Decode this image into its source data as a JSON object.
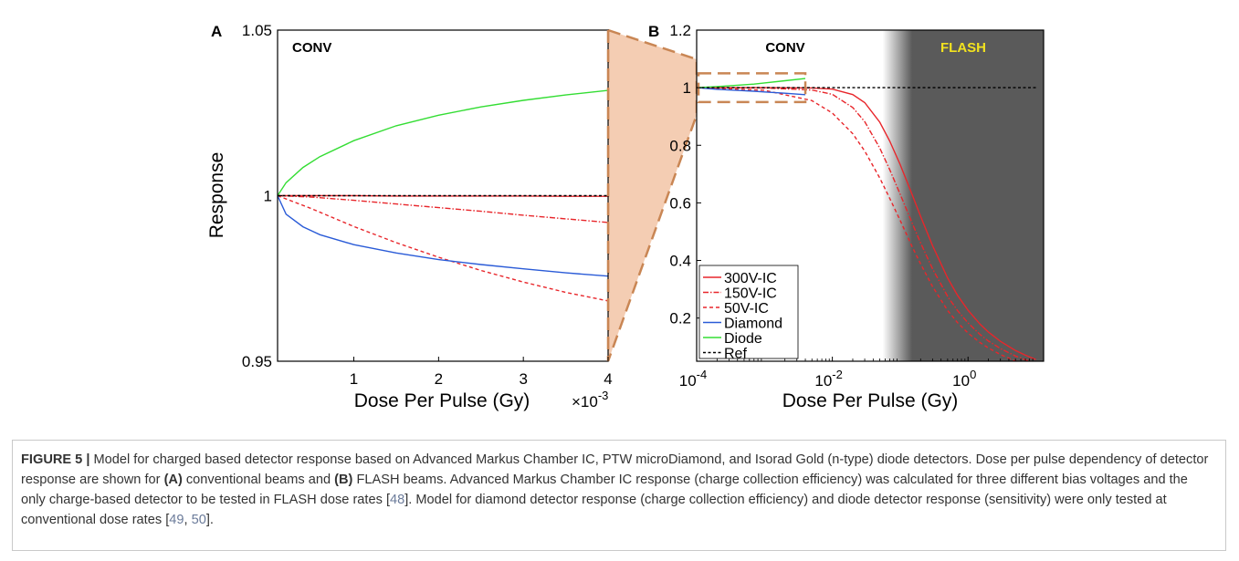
{
  "chart_data": [
    {
      "panel": "A",
      "type": "line",
      "title": "CONV",
      "xlabel": "Dose Per Pulse (Gy)",
      "x_multiplier_label": "×10",
      "x_multiplier_exp": "-3",
      "ylabel": "Response",
      "xlim": [
        0.0001,
        0.004
      ],
      "ylim": [
        0.95,
        1.05
      ],
      "x_ticks": [
        {
          "v": 0.001,
          "label": "1"
        },
        {
          "v": 0.002,
          "label": "2"
        },
        {
          "v": 0.003,
          "label": "3"
        },
        {
          "v": 0.004,
          "label": "4"
        }
      ],
      "y_ticks": [
        {
          "v": 0.95,
          "label": "0.95"
        },
        {
          "v": 1.0,
          "label": "1"
        },
        {
          "v": 1.05,
          "label": "1.05"
        }
      ],
      "series": [
        {
          "key": "300V-IC",
          "color": "#e8262b",
          "dash": "",
          "x": [
            0.0001,
            0.0005,
            0.001,
            0.0015,
            0.002,
            0.0025,
            0.003,
            0.0035,
            0.004
          ],
          "y": [
            1.0,
            1.0,
            1.0,
            0.9999,
            0.9999,
            0.9999,
            0.9999,
            0.9998,
            0.9998
          ]
        },
        {
          "key": "150V-IC",
          "color": "#e8262b",
          "dash": "6 2 1.5 2",
          "x": [
            0.0001,
            0.0005,
            0.001,
            0.0015,
            0.002,
            0.0025,
            0.003,
            0.0035,
            0.004
          ],
          "y": [
            1.0,
            0.9996,
            0.9986,
            0.9975,
            0.9964,
            0.9953,
            0.9941,
            0.993,
            0.9919
          ]
        },
        {
          "key": "50V-IC",
          "color": "#e8262b",
          "dash": "4 3",
          "x": [
            0.0001,
            0.0005,
            0.001,
            0.0015,
            0.002,
            0.0025,
            0.003,
            0.0035,
            0.004
          ],
          "y": [
            1.0,
            0.9961,
            0.9907,
            0.9858,
            0.9814,
            0.9774,
            0.9739,
            0.9708,
            0.9682
          ]
        },
        {
          "key": "Diamond",
          "color": "#2a5bd7",
          "dash": "",
          "x": [
            0.0001,
            0.0002,
            0.0004,
            0.0006,
            0.001,
            0.0015,
            0.002,
            0.0025,
            0.003,
            0.0035,
            0.004
          ],
          "y": [
            1.0,
            0.9944,
            0.9906,
            0.9882,
            0.9852,
            0.9827,
            0.9807,
            0.9792,
            0.9779,
            0.9767,
            0.9757
          ]
        },
        {
          "key": "Diode",
          "color": "#33dd33",
          "dash": "",
          "x": [
            0.0001,
            0.0002,
            0.0004,
            0.0006,
            0.001,
            0.0015,
            0.002,
            0.0025,
            0.003,
            0.0035,
            0.004
          ],
          "y": [
            1.0,
            1.0039,
            1.0085,
            1.0118,
            1.0166,
            1.0211,
            1.0243,
            1.0268,
            1.0288,
            1.0304,
            1.0318
          ]
        },
        {
          "key": "Ref",
          "color": "#000000",
          "dash": "3 2.5",
          "x": [
            0.0001,
            0.004
          ],
          "y": [
            1.0,
            1.0
          ]
        }
      ]
    },
    {
      "panel": "B",
      "type": "line",
      "xscale": "log",
      "xlabel": "Dose Per Pulse (Gy)",
      "xlim": [
        0.0001,
        13
      ],
      "ylim": [
        0.05,
        1.2
      ],
      "x_ticks": [
        {
          "v": 0.0001,
          "base": "10",
          "exp": "-4"
        },
        {
          "v": 0.01,
          "base": "10",
          "exp": "-2"
        },
        {
          "v": 1,
          "base": "10",
          "exp": "0"
        }
      ],
      "y_ticks": [
        {
          "v": 0.2,
          "label": "0.2"
        },
        {
          "v": 0.4,
          "label": "0.4"
        },
        {
          "v": 0.6,
          "label": "0.6"
        },
        {
          "v": 0.8,
          "label": "0.8"
        },
        {
          "v": 1.0,
          "label": "1"
        },
        {
          "v": 1.2,
          "label": "1.2"
        }
      ],
      "regions": [
        {
          "label": "CONV",
          "color": "#ffffff",
          "label_color": "#000000"
        },
        {
          "label": "FLASH",
          "color": "#5a5a5a",
          "label_color": "#f2e21f",
          "from": 0.15,
          "gradient_from": 0.055
        }
      ],
      "zoom_box": {
        "x": [
          0.0001,
          0.004
        ],
        "y": [
          0.95,
          1.05
        ],
        "color": "#d08c5a"
      },
      "legend": {
        "position": "bottom-left"
      },
      "series": [
        {
          "name": "300V-IC",
          "color": "#e8262b",
          "dash": "",
          "x": [
            0.0001,
            0.001,
            0.005,
            0.01,
            0.02,
            0.03,
            0.05,
            0.07,
            0.1,
            0.15,
            0.2,
            0.3,
            0.5,
            0.7,
            1,
            1.5,
            2,
            3,
            5,
            7,
            10
          ],
          "y": [
            1.0,
            1.0,
            0.999,
            0.995,
            0.976,
            0.948,
            0.88,
            0.815,
            0.733,
            0.629,
            0.553,
            0.451,
            0.339,
            0.279,
            0.227,
            0.179,
            0.151,
            0.119,
            0.087,
            0.071,
            0.056
          ]
        },
        {
          "name": "150V-IC",
          "color": "#e8262b",
          "dash": "6 2 1.5 2",
          "x": [
            0.0001,
            0.001,
            0.005,
            0.01,
            0.02,
            0.03,
            0.05,
            0.07,
            0.1,
            0.15,
            0.2,
            0.3,
            0.5,
            0.7,
            1,
            1.5,
            2,
            3,
            5,
            7,
            10
          ],
          "y": [
            1.0,
            0.999,
            0.992,
            0.977,
            0.931,
            0.882,
            0.79,
            0.716,
            0.63,
            0.53,
            0.461,
            0.371,
            0.275,
            0.226,
            0.183,
            0.143,
            0.12,
            0.094,
            0.068,
            0.055,
            0.043
          ]
        },
        {
          "name": "50V-IC",
          "color": "#e8262b",
          "dash": "4 3",
          "x": [
            0.0001,
            0.001,
            0.005,
            0.01,
            0.02,
            0.03,
            0.05,
            0.07,
            0.1,
            0.15,
            0.2,
            0.3,
            0.5,
            0.7,
            1,
            1.5,
            2,
            3,
            5,
            7,
            10
          ],
          "y": [
            1.0,
            0.991,
            0.955,
            0.912,
            0.84,
            0.78,
            0.686,
            0.616,
            0.539,
            0.448,
            0.388,
            0.309,
            0.226,
            0.184,
            0.148,
            0.115,
            0.096,
            0.073,
            0.051,
            0.041,
            0.032
          ]
        },
        {
          "name": "Diamond",
          "color": "#2a5bd7",
          "dash": "",
          "x": [
            0.0001,
            0.0002,
            0.0004,
            0.0007,
            0.001,
            0.002,
            0.004
          ],
          "y": [
            1.0,
            0.9944,
            0.9906,
            0.9876,
            0.9852,
            0.9807,
            0.9757
          ]
        },
        {
          "name": "Diode",
          "color": "#33dd33",
          "dash": "",
          "x": [
            0.0001,
            0.0002,
            0.0004,
            0.0007,
            0.001,
            0.002,
            0.004
          ],
          "y": [
            1.0,
            1.0039,
            1.0085,
            1.0126,
            1.0166,
            1.0243,
            1.0318
          ]
        },
        {
          "name": "Ref",
          "color": "#000000",
          "dash": "3 2.5",
          "x": [
            0.0001,
            10
          ],
          "y": [
            1.0,
            1.0
          ]
        }
      ]
    }
  ],
  "caption": {
    "label": "FIGURE 5 |",
    "p1": " Model for charged based detector response based on Advanced Markus Chamber IC, PTW microDiamond, and Isorad Gold (n-type) diode detectors. Dose per pulse dependency of detector response are shown for ",
    "a_label": "(A)",
    "p2": " conventional beams and ",
    "b_label": "(B)",
    "p3": " FLASH beams. Advanced Markus Chamber IC response (charge collection efficiency) was calculated for three different bias voltages and the only charge-based detector to be tested in FLASH dose rates [",
    "ref1": "48",
    "p4": "]. Model for diamond detector response (charge collection efficiency) and diode detector response (sensitivity) were only tested at conventional dose rates [",
    "ref2": "49",
    "sep": ", ",
    "ref3": "50",
    "p5": "]."
  }
}
